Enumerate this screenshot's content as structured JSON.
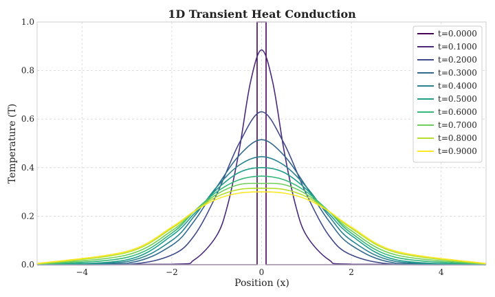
{
  "chart_data": {
    "type": "line",
    "title": "1D Transient Heat Conduction",
    "xlabel": "Position (x)",
    "ylabel": "Temperature (T)",
    "xlim": [
      -5,
      5
    ],
    "ylim": [
      0,
      1
    ],
    "xticks": [
      -4,
      -2,
      0,
      2,
      4
    ],
    "xtick_labels": [
      "−4",
      "−2",
      "0",
      "2",
      "4"
    ],
    "yticks": [
      0,
      0.2,
      0.4,
      0.6,
      0.8,
      1.0
    ],
    "ytick_labels": [
      "0.0",
      "0.2",
      "0.4",
      "0.6",
      "0.8",
      "1.0"
    ],
    "grid": true,
    "legend_position": "top-right",
    "series": [
      {
        "name": "t=0.0000",
        "color": "#440154",
        "x": [
          -5,
          -0.1,
          -0.1,
          0.1,
          0.1,
          5
        ],
        "y": [
          0,
          0,
          1,
          1,
          0,
          0
        ]
      },
      {
        "name": "t=0.1000",
        "color": "#482878",
        "x": [
          -5,
          -2,
          -1.5,
          -1.0,
          -0.75,
          -0.5,
          -0.25,
          0,
          0.25,
          0.5,
          0.75,
          1.0,
          1.5,
          2,
          5
        ],
        "y": [
          0,
          0.002,
          0.02,
          0.12,
          0.25,
          0.47,
          0.75,
          0.885,
          0.75,
          0.47,
          0.25,
          0.12,
          0.02,
          0.002,
          0
        ]
      },
      {
        "name": "t=0.2000",
        "color": "#3e4989",
        "x": [
          -5,
          -3,
          -2,
          -1.5,
          -1.0,
          -0.5,
          0,
          0.5,
          1.0,
          1.5,
          2,
          3,
          5
        ],
        "y": [
          0,
          0.001,
          0.04,
          0.12,
          0.29,
          0.5,
          0.63,
          0.5,
          0.29,
          0.12,
          0.04,
          0.001,
          0
        ]
      },
      {
        "name": "t=0.3000",
        "color": "#31688e",
        "x": [
          -5,
          -3,
          -2,
          -1.5,
          -1.0,
          -0.5,
          0,
          0.5,
          1.0,
          1.5,
          2,
          3,
          5
        ],
        "y": [
          0,
          0.006,
          0.08,
          0.18,
          0.32,
          0.45,
          0.515,
          0.45,
          0.32,
          0.18,
          0.08,
          0.006,
          0
        ]
      },
      {
        "name": "t=0.4000",
        "color": "#26828e",
        "x": [
          -5,
          -3,
          -2,
          -1.5,
          -1.0,
          -0.5,
          0,
          0.5,
          1.0,
          1.5,
          2,
          3,
          5
        ],
        "y": [
          0,
          0.013,
          0.1,
          0.2,
          0.32,
          0.41,
          0.445,
          0.41,
          0.32,
          0.2,
          0.1,
          0.013,
          0
        ]
      },
      {
        "name": "t=0.5000",
        "color": "#1f9e89",
        "x": [
          -5,
          -3,
          -2,
          -1.5,
          -1.0,
          -0.5,
          0,
          0.5,
          1.0,
          1.5,
          2,
          3,
          5
        ],
        "y": [
          0.001,
          0.02,
          0.12,
          0.21,
          0.31,
          0.38,
          0.4,
          0.38,
          0.31,
          0.21,
          0.12,
          0.02,
          0.001
        ]
      },
      {
        "name": "t=0.6000",
        "color": "#35b779",
        "x": [
          -5,
          -3,
          -2,
          -1.5,
          -1.0,
          -0.5,
          0,
          0.5,
          1.0,
          1.5,
          2,
          3,
          5
        ],
        "y": [
          0.001,
          0.03,
          0.13,
          0.22,
          0.3,
          0.35,
          0.365,
          0.35,
          0.3,
          0.22,
          0.13,
          0.03,
          0.001
        ]
      },
      {
        "name": "t=0.7000",
        "color": "#6ece58",
        "x": [
          -5,
          -3,
          -2,
          -1.5,
          -1.0,
          -0.5,
          0,
          0.5,
          1.0,
          1.5,
          2,
          3,
          5
        ],
        "y": [
          0.002,
          0.04,
          0.14,
          0.22,
          0.29,
          0.33,
          0.335,
          0.33,
          0.29,
          0.22,
          0.14,
          0.04,
          0.002
        ]
      },
      {
        "name": "t=0.8000",
        "color": "#b5de2b",
        "x": [
          -5,
          -3,
          -2,
          -1.5,
          -1.0,
          -0.5,
          0,
          0.5,
          1.0,
          1.5,
          2,
          3,
          5
        ],
        "y": [
          0.003,
          0.05,
          0.15,
          0.22,
          0.28,
          0.31,
          0.315,
          0.31,
          0.28,
          0.22,
          0.15,
          0.05,
          0.003
        ]
      },
      {
        "name": "t=0.9000",
        "color": "#fde725",
        "x": [
          -5,
          -3,
          -2,
          -1.5,
          -1.0,
          -0.5,
          0,
          0.5,
          1.0,
          1.5,
          2,
          3,
          5
        ],
        "y": [
          0.005,
          0.055,
          0.155,
          0.22,
          0.27,
          0.295,
          0.3,
          0.295,
          0.27,
          0.22,
          0.155,
          0.055,
          0.005
        ]
      }
    ]
  }
}
